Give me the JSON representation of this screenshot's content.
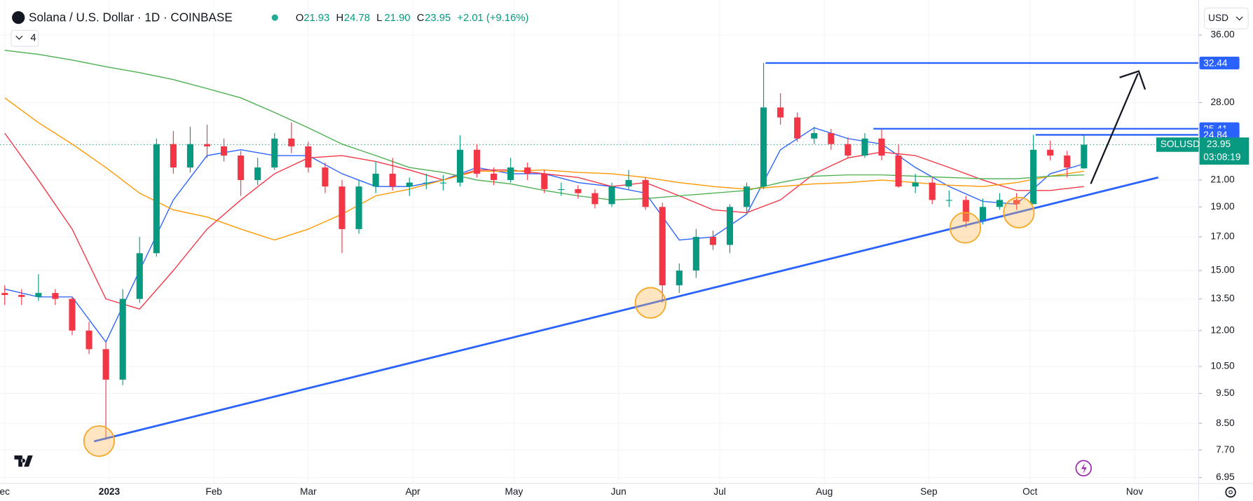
{
  "chart_data": {
    "type": "candlestick",
    "title": "Solana / U.S. Dollar · 1D · COINBASE",
    "ohlc": [
      {
        "label": "O",
        "value": "21.93"
      },
      {
        "label": "H",
        "value": "24.78"
      },
      {
        "label": "L",
        "value": "21.90"
      },
      {
        "label": "C",
        "value": "23.95"
      }
    ],
    "change": "+2.01 (+9.16%)",
    "indicator_count": "4",
    "currency": "USD",
    "symbol": "SOLUSD",
    "countdown": "03:08:19",
    "last_price": {
      "value": 23.95,
      "label": "23.95"
    },
    "log_scale": true,
    "xlim": [
      -1.4,
      354
    ],
    "xticks": [
      {
        "value": 0,
        "label": "ec"
      },
      {
        "value": 31,
        "label": "2023"
      },
      {
        "value": 62,
        "label": "Feb"
      },
      {
        "value": 90,
        "label": "Mar"
      },
      {
        "value": 121,
        "label": "Apr"
      },
      {
        "value": 151,
        "label": "May"
      },
      {
        "value": 182,
        "label": "Jun"
      },
      {
        "value": 212,
        "label": "Jul"
      },
      {
        "value": 243,
        "label": "Aug"
      },
      {
        "value": 274,
        "label": "Sep"
      },
      {
        "value": 304,
        "label": "Oct"
      },
      {
        "value": 335,
        "label": "Nov"
      }
    ],
    "ylim": [
      6.8,
      41
    ],
    "yticks": [
      {
        "value": 36,
        "label": "36.00"
      },
      {
        "value": 28,
        "label": "28.00"
      },
      {
        "value": 21,
        "label": "21.00"
      },
      {
        "value": 19,
        "label": "19.00"
      },
      {
        "value": 17,
        "label": "17.00"
      },
      {
        "value": 15,
        "label": "15.00"
      },
      {
        "value": 13.5,
        "label": "13.50"
      },
      {
        "value": 12,
        "label": "12.00"
      },
      {
        "value": 10.5,
        "label": "10.50"
      },
      {
        "value": 9.5,
        "label": "9.50"
      },
      {
        "value": 8.5,
        "label": "8.50"
      },
      {
        "value": 7.7,
        "label": "7.70"
      },
      {
        "value": 6.95,
        "label": "6.95"
      }
    ],
    "up_color": "#089981",
    "down_color": "#f23645",
    "x": [
      0,
      5,
      10,
      15,
      20,
      25,
      30,
      35,
      40,
      45,
      50,
      55,
      60,
      65,
      70,
      75,
      80,
      85,
      90,
      95,
      100,
      105,
      110,
      115,
      120,
      125,
      130,
      135,
      140,
      145,
      150,
      155,
      160,
      165,
      170,
      175,
      180,
      185,
      190,
      195,
      200,
      205,
      210,
      215,
      220,
      225,
      230,
      235,
      240,
      245,
      250,
      255,
      260,
      265,
      270,
      275,
      280,
      285,
      290,
      295,
      300,
      305,
      310,
      315,
      320
    ],
    "open": [
      13.8,
      13.7,
      13.6,
      13.8,
      13.5,
      12.0,
      11.2,
      10.0,
      13.5,
      16,
      24,
      22,
      24,
      23.8,
      23,
      21,
      22,
      24.5,
      23.8,
      22,
      20.5,
      17.5,
      20.5,
      21.5,
      20.5,
      20.8,
      20.8,
      20.8,
      23.5,
      21.5,
      21,
      22,
      21.5,
      20.3,
      20.3,
      20,
      19.2,
      20.5,
      21,
      19,
      14.2,
      15,
      17,
      16.5,
      19,
      20.5,
      27.5,
      26.5,
      24.5,
      25,
      24,
      23,
      24.5,
      23,
      20.5,
      20.8,
      19.5,
      19.5,
      18,
      19,
      19.5,
      19.2,
      23.5,
      23,
      21.93
    ],
    "high": [
      14.2,
      14.0,
      14.8,
      14.0,
      13.6,
      12.4,
      11.5,
      14.0,
      17.0,
      24.5,
      25.2,
      25.6,
      25.8,
      24.5,
      23.4,
      22.8,
      25.0,
      26.0,
      24.2,
      22.4,
      21.0,
      21.0,
      22.5,
      22.8,
      21.2,
      21.5,
      21.4,
      24.8,
      24.0,
      22.0,
      22.8,
      22.4,
      21.8,
      20.8,
      20.6,
      20.3,
      20.8,
      21.8,
      21.2,
      19.3,
      15.4,
      17.5,
      17.4,
      19.2,
      20.8,
      32.44,
      29.0,
      27.0,
      25.6,
      25.4,
      24.6,
      25.0,
      25.41,
      24.0,
      21.5,
      21.2,
      20.2,
      19.8,
      19.6,
      20.0,
      20.0,
      24.84,
      24.3,
      23.4,
      24.78
    ],
    "low": [
      13.2,
      13.2,
      13.4,
      13.2,
      11.8,
      11.0,
      8.0,
      9.8,
      13.3,
      15.8,
      21.5,
      21.6,
      22.8,
      22.5,
      19.8,
      20.6,
      21.8,
      23.2,
      21.6,
      20.0,
      16.0,
      17.2,
      20.0,
      20.2,
      19.8,
      20.3,
      20.2,
      20.5,
      21.2,
      20.6,
      20.8,
      21.0,
      20.0,
      19.8,
      19.6,
      18.9,
      19.0,
      20.3,
      18.8,
      13.3,
      13.8,
      14.6,
      16.2,
      16.0,
      18.6,
      20.3,
      25.8,
      24.2,
      24.0,
      23.5,
      22.8,
      22.8,
      22.6,
      20.4,
      20.0,
      19.2,
      19.0,
      17.6,
      17.8,
      18.8,
      18.8,
      19.2,
      22.6,
      21.2,
      21.9
    ],
    "close": [
      13.7,
      13.6,
      13.8,
      13.5,
      12.0,
      11.2,
      10.0,
      13.5,
      16,
      24,
      22,
      24,
      23.8,
      23,
      21,
      22,
      24.5,
      23.8,
      22,
      20.5,
      17.5,
      20.5,
      21.5,
      20.5,
      20.8,
      20.8,
      20.8,
      23.5,
      21.5,
      21,
      22,
      21.5,
      20.3,
      20.3,
      20,
      19.2,
      20.5,
      21,
      19,
      14.2,
      15,
      17,
      16.5,
      19,
      20.5,
      27.5,
      26.5,
      24.5,
      25,
      24,
      23,
      24.5,
      23,
      20.5,
      20.8,
      19.5,
      19.5,
      18,
      19,
      19.5,
      19.2,
      23.5,
      23,
      22,
      23.95
    ],
    "ma_x": [
      0,
      10,
      20,
      30,
      40,
      50,
      60,
      70,
      80,
      90,
      100,
      110,
      120,
      130,
      140,
      150,
      160,
      170,
      180,
      190,
      200,
      210,
      220,
      230,
      240,
      250,
      260,
      270,
      280,
      290,
      300,
      310,
      320
    ],
    "moving_averages": [
      {
        "color": "#2962ff",
        "values": [
          14,
          13.6,
          13.6,
          11.5,
          15,
          19.5,
          23,
          23.5,
          23,
          23,
          21.5,
          20.5,
          20.5,
          21,
          22,
          21.5,
          21.5,
          20.8,
          20.5,
          20,
          16.8,
          17,
          18.5,
          23.5,
          25.5,
          24.5,
          24,
          22,
          20.5,
          19.4,
          19.2,
          21.5,
          22.3
        ]
      },
      {
        "color": "#f23645",
        "values": [
          25,
          21,
          17.5,
          13.5,
          13,
          15,
          17.5,
          19.5,
          21.5,
          22.8,
          23,
          22.5,
          21.8,
          21,
          21.8,
          21.8,
          21.5,
          21.2,
          20.5,
          20.8,
          19.8,
          18.8,
          18.6,
          19.5,
          21.5,
          22.8,
          23.3,
          23,
          22,
          21,
          20.2,
          20.2,
          20.5
        ]
      },
      {
        "color": "#ff9800",
        "values": [
          28.5,
          26,
          24,
          22,
          20,
          18.8,
          18.3,
          17.5,
          16.8,
          17.5,
          18.5,
          19.8,
          20.3,
          21,
          21.7,
          21.7,
          21.8,
          21.6,
          21.5,
          21.2,
          20.8,
          20.5,
          20.3,
          20.5,
          20.7,
          20.8,
          21,
          20.8,
          20.6,
          20.5,
          20.8,
          21.3,
          21.7
        ]
      },
      {
        "color": "#4caf50",
        "values": [
          34,
          33.5,
          32.8,
          32,
          31.3,
          30.5,
          29.5,
          28.5,
          27,
          25.5,
          24,
          23,
          22,
          21.6,
          21,
          20.7,
          20.2,
          19.8,
          19.5,
          19.6,
          19.8,
          20,
          20.2,
          20.8,
          21.3,
          21.4,
          21.4,
          21.3,
          21.2,
          21.1,
          21.1,
          21.3,
          21.4
        ]
      }
    ],
    "trendline": {
      "color": "#2962ff",
      "x": [
        26.5,
        342
      ],
      "values": [
        7.95,
        21.2
      ]
    },
    "levels": [
      {
        "value": 32.44,
        "label": "32.44"
      },
      {
        "value": 25.41,
        "label": "25.41"
      },
      {
        "value": 24.84,
        "label": "24.84"
      }
    ],
    "level_color": "#2962ff"
  }
}
